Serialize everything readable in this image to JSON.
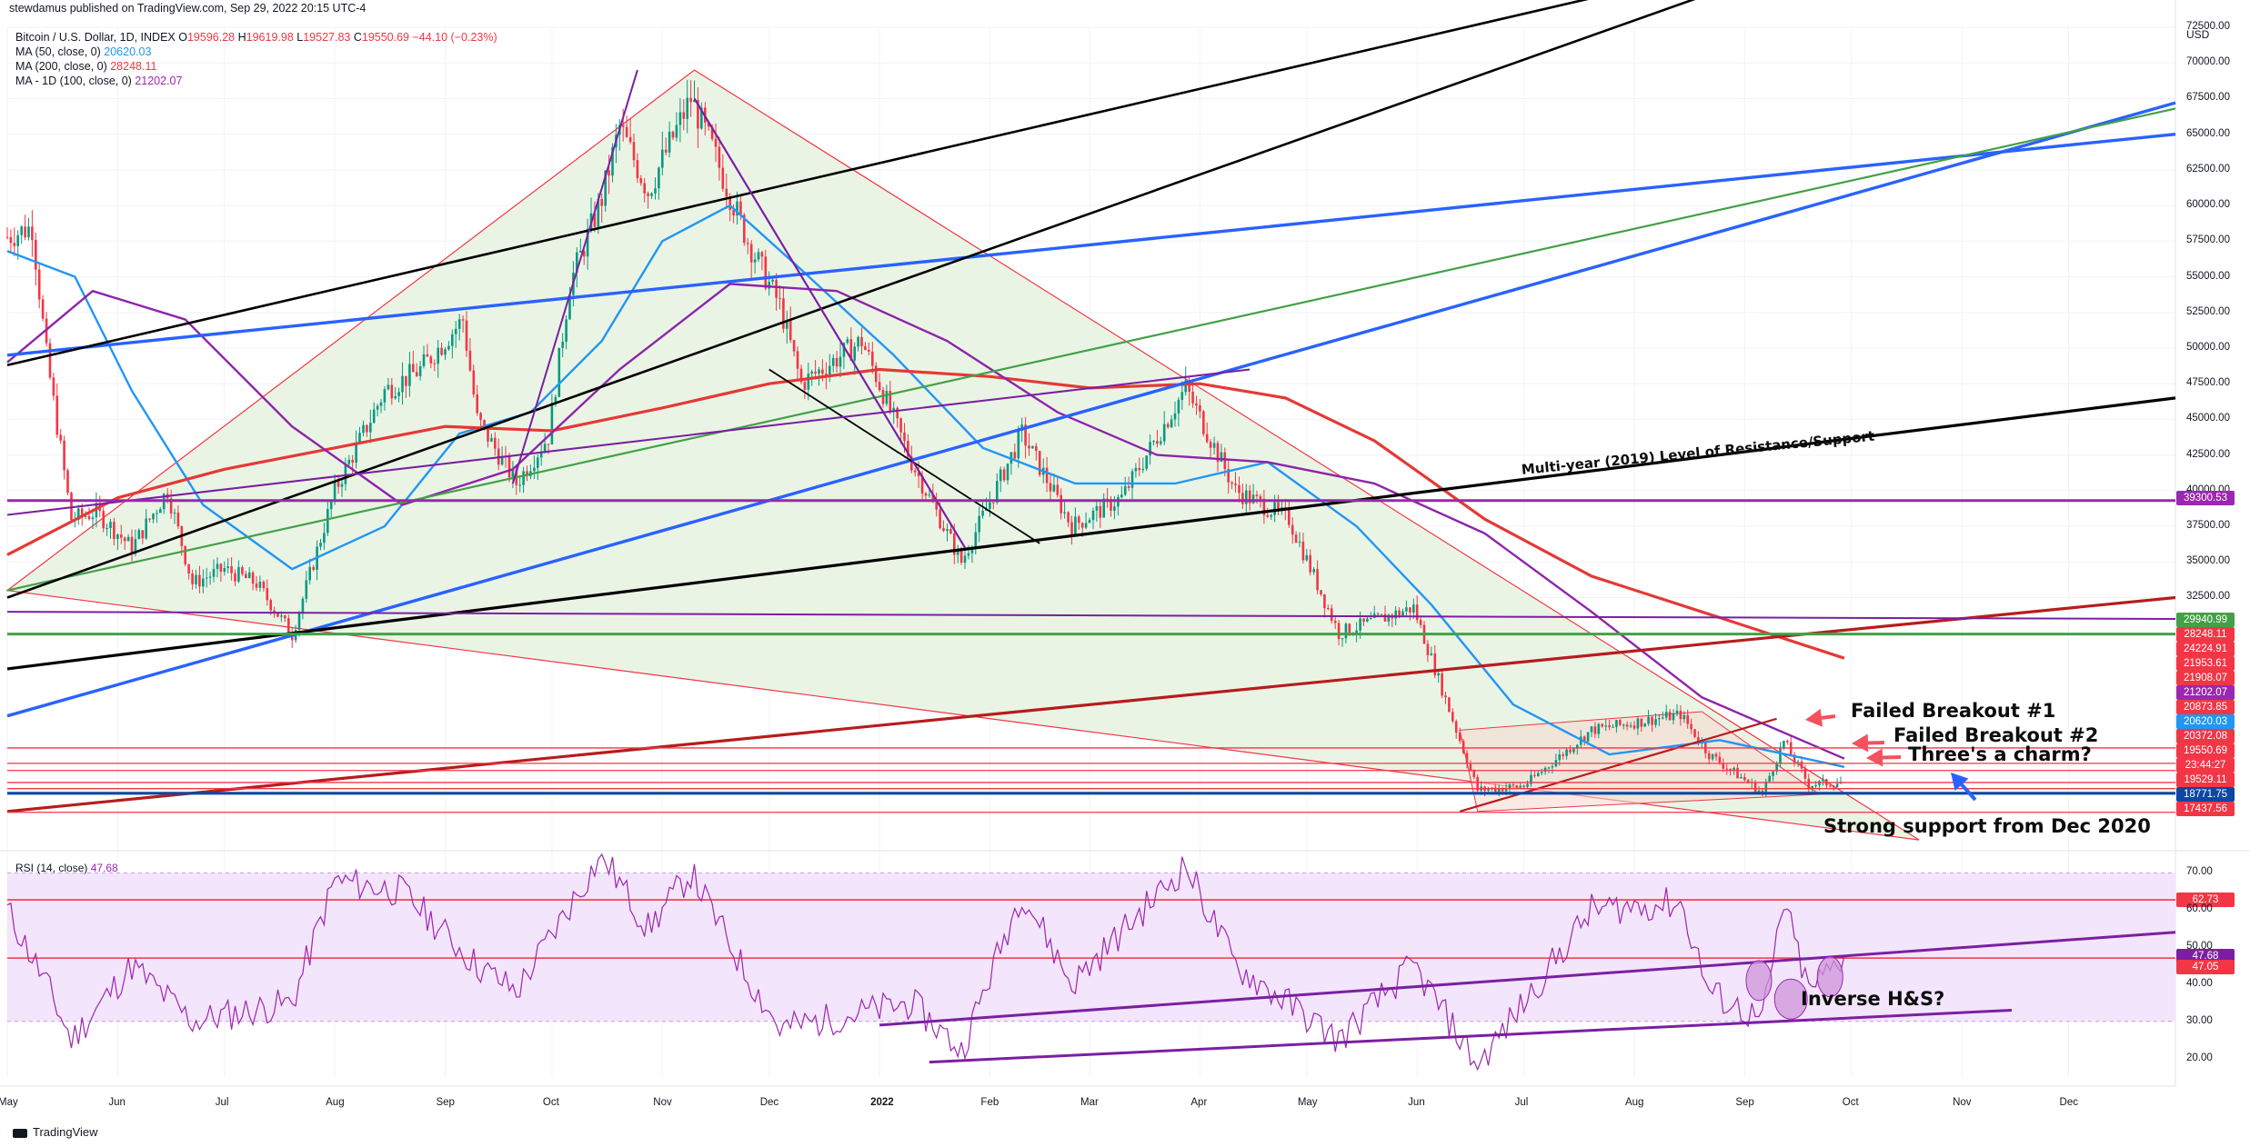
{
  "header": {
    "publisher": "stewdamus published on TradingView.com, Sep 29, 2022 20:15 UTC-4",
    "symbol": "Bitcoin / U.S. Dollar, 1D, INDEX",
    "ohlc": {
      "o_label": "O",
      "o": "19596.28",
      "h_label": "H",
      "h": "19619.98",
      "l_label": "L",
      "l": "19527.83",
      "c_label": "C",
      "c": "19550.69",
      "change": "−44.10 (−0.23%)"
    },
    "ma50": {
      "label": "MA (50, close, 0)",
      "value": "20620.03"
    },
    "ma200": {
      "label": "MA (200, close, 0)",
      "value": "28248.11"
    },
    "ma100": {
      "label": "MA - 1D (100, close, 0)",
      "value": "21202.07"
    }
  },
  "rsi": {
    "label": "RSI (14, close)",
    "value": "47.68"
  },
  "footer": {
    "brand": "TradingView"
  },
  "colors": {
    "up": "#089981",
    "down": "#f23645",
    "ma50": "#2196f3",
    "ma200": "#e53935",
    "ma100": "#8e24aa",
    "blue_trend": "#2962ff",
    "black_trend": "#000000",
    "green_trend": "#43a047",
    "purple_line": "#7b1fa2",
    "triangle_fill": "#e6f2e0",
    "rsi_fill": "#f3e5fb"
  },
  "annotations": {
    "multi_year": "Multi-year (2019) Level of Resistance/Support",
    "failed1": "Failed Breakout #1",
    "failed2": "Failed Breakout #2",
    "charm": "Three's a charm?",
    "support": "Strong support from Dec 2020",
    "inverse": "Inverse H&S?"
  },
  "chart_data": {
    "type": "candlestick",
    "currency": "USD",
    "price_axis_ticks": [
      "72500.00",
      "70000.00",
      "67500.00",
      "65000.00",
      "62500.00",
      "60000.00",
      "57500.00",
      "55000.00",
      "52500.00",
      "50000.00",
      "47500.00",
      "45000.00",
      "42500.00",
      "40000.00",
      "37500.00",
      "35000.00",
      "32500.00"
    ],
    "price_tags": [
      {
        "value": "39300.53",
        "color": "#9c27b0"
      },
      {
        "value": "29940.99",
        "color": "#43a047"
      },
      {
        "value": "28248.11",
        "color": "#f23645"
      },
      {
        "value": "24224.91",
        "color": "#f23645"
      },
      {
        "value": "21953.61",
        "color": "#f23645"
      },
      {
        "value": "21908.07",
        "color": "#f23645"
      },
      {
        "value": "21202.07",
        "color": "#9c27b0"
      },
      {
        "value": "20873.85",
        "color": "#f23645"
      },
      {
        "value": "20620.03",
        "color": "#2196f3"
      },
      {
        "value": "20372.08",
        "color": "#f23645"
      },
      {
        "value": "19550.69",
        "color": "#f23645"
      },
      {
        "value": "23:44:27",
        "color": "#f23645"
      },
      {
        "value": "19529.11",
        "color": "#f23645"
      },
      {
        "value": "18771.75",
        "color": "#0d47a1"
      },
      {
        "value": "17437.56",
        "color": "#f23645"
      }
    ],
    "time_axis": [
      "May",
      "Jun",
      "Jul",
      "Aug",
      "Sep",
      "Oct",
      "Nov",
      "Dec",
      "2022",
      "Feb",
      "Mar",
      "Apr",
      "May",
      "Jun",
      "Jul",
      "Aug",
      "Sep",
      "Oct",
      "Nov",
      "Dec"
    ],
    "rsi_axis_ticks": [
      "70.00",
      "60.00",
      "50.00",
      "40.00",
      "30.00",
      "20.00"
    ],
    "rsi_tags": [
      {
        "value": "62.73",
        "color": "#f23645"
      },
      {
        "value": "47.68",
        "color": "#7b1fa2"
      },
      {
        "value": "47.05",
        "color": "#f23645"
      }
    ],
    "price_series": [
      [
        "2021-05-01",
        57800
      ],
      [
        "2021-05-08",
        58500
      ],
      [
        "2021-05-12",
        49500
      ],
      [
        "2021-05-19",
        38000
      ],
      [
        "2021-05-26",
        38500
      ],
      [
        "2021-06-05",
        36000
      ],
      [
        "2021-06-15",
        40000
      ],
      [
        "2021-06-22",
        33500
      ],
      [
        "2021-07-01",
        34500
      ],
      [
        "2021-07-10",
        33500
      ],
      [
        "2021-07-20",
        29900
      ],
      [
        "2021-08-01",
        40000
      ],
      [
        "2021-08-15",
        47000
      ],
      [
        "2021-08-25",
        48500
      ],
      [
        "2021-09-06",
        52000
      ],
      [
        "2021-09-10",
        45000
      ],
      [
        "2021-09-21",
        40500
      ],
      [
        "2021-09-30",
        43800
      ],
      [
        "2021-10-06",
        54500
      ],
      [
        "2021-10-15",
        60500
      ],
      [
        "2021-10-20",
        65500
      ],
      [
        "2021-10-28",
        61000
      ],
      [
        "2021-11-09",
        67500
      ],
      [
        "2021-11-15",
        64000
      ],
      [
        "2021-11-25",
        57500
      ],
      [
        "2021-12-04",
        53000
      ],
      [
        "2021-12-10",
        47500
      ],
      [
        "2021-12-27",
        50500
      ],
      [
        "2022-01-10",
        42000
      ],
      [
        "2022-01-24",
        35000
      ],
      [
        "2022-02-10",
        44000
      ],
      [
        "2022-02-24",
        37500
      ],
      [
        "2022-03-10",
        39500
      ],
      [
        "2022-03-28",
        47200
      ],
      [
        "2022-04-11",
        40000
      ],
      [
        "2022-04-26",
        38000
      ],
      [
        "2022-05-10",
        30000
      ],
      [
        "2022-05-31",
        31800
      ],
      [
        "2022-06-13",
        22500
      ],
      [
        "2022-06-18",
        19000
      ],
      [
        "2022-07-01",
        19300
      ],
      [
        "2022-07-20",
        23200
      ],
      [
        "2022-08-14",
        24300
      ],
      [
        "2022-08-22",
        21500
      ],
      [
        "2022-09-06",
        18800
      ],
      [
        "2022-09-12",
        22400
      ],
      [
        "2022-09-19",
        19400
      ],
      [
        "2022-09-29",
        19550
      ]
    ],
    "rsi_series": [
      [
        "2021-05-01",
        60
      ],
      [
        "2021-05-12",
        40
      ],
      [
        "2021-05-19",
        25
      ],
      [
        "2021-06-05",
        45
      ],
      [
        "2021-06-22",
        30
      ],
      [
        "2021-07-20",
        35
      ],
      [
        "2021-08-01",
        68
      ],
      [
        "2021-08-20",
        65
      ],
      [
        "2021-09-10",
        45
      ],
      [
        "2021-09-21",
        38
      ],
      [
        "2021-10-15",
        75
      ],
      [
        "2021-10-28",
        55
      ],
      [
        "2021-11-09",
        70
      ],
      [
        "2021-11-25",
        42
      ],
      [
        "2021-12-04",
        28
      ],
      [
        "2022-01-10",
        35
      ],
      [
        "2022-01-24",
        22
      ],
      [
        "2022-02-10",
        65
      ],
      [
        "2022-02-24",
        40
      ],
      [
        "2022-03-28",
        72
      ],
      [
        "2022-04-11",
        45
      ],
      [
        "2022-05-10",
        25
      ],
      [
        "2022-05-31",
        45
      ],
      [
        "2022-06-18",
        18
      ],
      [
        "2022-07-01",
        35
      ],
      [
        "2022-07-20",
        60
      ],
      [
        "2022-08-14",
        62
      ],
      [
        "2022-08-22",
        38
      ],
      [
        "2022-09-06",
        30
      ],
      [
        "2022-09-12",
        62
      ],
      [
        "2022-09-19",
        38
      ],
      [
        "2022-09-29",
        47.68
      ]
    ],
    "ylim": [
      15000,
      72500
    ],
    "rsi_ylim": [
      15,
      75
    ],
    "grid": true
  }
}
